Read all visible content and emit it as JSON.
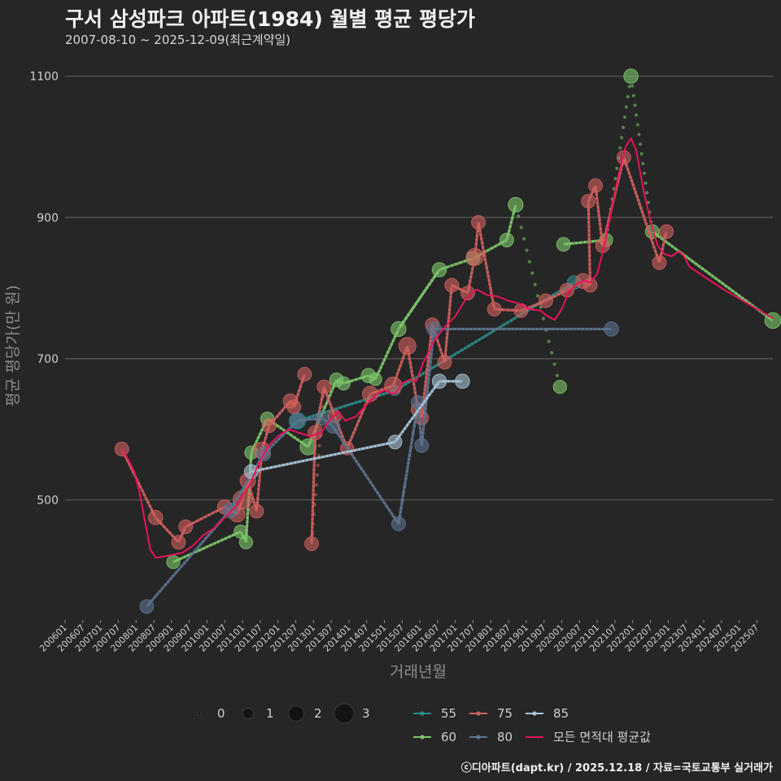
{
  "chart_data": {
    "type": "line",
    "title": "구서 삼성파크 아파트(1984) 월별 평균 평당가",
    "subtitle": "2007-08-10 ~ 2025-12-09(최근계약일)",
    "xlabel": "거래년월",
    "ylabel": "평균 평당가(만 원)",
    "x_ticks": [
      "200601",
      "200607",
      "200701",
      "200707",
      "200801",
      "200807",
      "200901",
      "200907",
      "201001",
      "201007",
      "201101",
      "201107",
      "201201",
      "201207",
      "201301",
      "201307",
      "201401",
      "201407",
      "201501",
      "201507",
      "201601",
      "201607",
      "201701",
      "201707",
      "201801",
      "201807",
      "201901",
      "201907",
      "202001",
      "202007",
      "202101",
      "202107",
      "202201",
      "202207",
      "202301",
      "202307",
      "202401",
      "202407",
      "202501",
      "202507"
    ],
    "x_range": [
      2006.0,
      2025.95
    ],
    "y_ticks": [
      500,
      700,
      900,
      1100
    ],
    "ylim": [
      330,
      1125
    ],
    "size_legend": {
      "title": "",
      "values": [
        "0",
        "1",
        "2",
        "3"
      ]
    },
    "series": [
      {
        "name": "55",
        "color": "#2a8a86",
        "points": [
          [
            2012.55,
            612,
            2.1
          ],
          [
            2015.3,
            655,
            1.0
          ],
          [
            2020.35,
            808,
            1.6
          ]
        ]
      },
      {
        "name": "60",
        "color": "#7ec86a",
        "points": [
          [
            2009.05,
            412,
            1.5
          ],
          [
            2010.95,
            455,
            1.5
          ],
          [
            2011.1,
            440,
            1.5
          ],
          [
            2011.25,
            567,
            1.5
          ],
          [
            2011.7,
            615,
            1.5
          ],
          [
            2012.85,
            575,
            2.0
          ],
          [
            2013.65,
            670,
            1.6
          ],
          [
            2013.85,
            665,
            1.5
          ],
          [
            2014.55,
            676,
            1.7
          ],
          [
            2014.75,
            671,
            1.4
          ],
          [
            2015.4,
            742,
            1.8
          ],
          [
            2016.55,
            826,
            1.7
          ],
          [
            2017.5,
            842,
            1.6
          ],
          [
            2018.45,
            868,
            1.6
          ],
          [
            2018.7,
            918,
            1.8
          ],
          [
            2019.95,
            660,
            1.5
          ],
          [
            2020.05,
            862,
            1.6
          ],
          [
            2021.25,
            868,
            1.5
          ],
          [
            2021.95,
            1100,
            1.7
          ],
          [
            2022.55,
            880,
            1.6
          ],
          [
            2025.95,
            754,
            2.0
          ]
        ]
      },
      {
        "name": "75",
        "color": "#d0605e",
        "points": [
          [
            2007.6,
            572,
            1.6
          ],
          [
            2008.55,
            475,
            1.7
          ],
          [
            2009.2,
            440,
            1.6
          ],
          [
            2009.4,
            462,
            1.6
          ],
          [
            2010.5,
            490,
            1.7
          ],
          [
            2010.85,
            480,
            2.0
          ],
          [
            2011.0,
            500,
            2.5
          ],
          [
            2011.15,
            527,
            1.9
          ],
          [
            2011.4,
            484,
            1.6
          ],
          [
            2011.55,
            570,
            2.1
          ],
          [
            2011.75,
            605,
            1.6
          ],
          [
            2012.35,
            640,
            1.7
          ],
          [
            2012.45,
            632,
            1.6
          ],
          [
            2012.75,
            678,
            1.6
          ],
          [
            2012.95,
            438,
            1.6
          ],
          [
            2013.05,
            595,
            1.7
          ],
          [
            2013.3,
            660,
            1.6
          ],
          [
            2013.6,
            618,
            1.5
          ],
          [
            2013.95,
            573,
            1.5
          ],
          [
            2014.6,
            650,
            1.9
          ],
          [
            2015.25,
            662,
            2.2
          ],
          [
            2015.65,
            718,
            2.2
          ],
          [
            2015.95,
            628,
            1.6
          ],
          [
            2016.05,
            616,
            1.6
          ],
          [
            2016.35,
            748,
            1.6
          ],
          [
            2016.7,
            695,
            1.6
          ],
          [
            2016.9,
            804,
            1.6
          ],
          [
            2017.35,
            793,
            1.6
          ],
          [
            2017.55,
            844,
            2.2
          ],
          [
            2017.65,
            893,
            1.6
          ],
          [
            2018.1,
            770,
            1.6
          ],
          [
            2018.85,
            768,
            1.6
          ],
          [
            2019.55,
            782,
            1.6
          ],
          [
            2020.15,
            797,
            1.6
          ],
          [
            2020.6,
            810,
            1.8
          ],
          [
            2020.8,
            804,
            1.6
          ],
          [
            2020.75,
            923,
            1.6
          ],
          [
            2020.95,
            945,
            1.6
          ],
          [
            2021.15,
            860,
            1.6
          ],
          [
            2021.75,
            985,
            1.6
          ],
          [
            2022.75,
            836,
            1.6
          ],
          [
            2022.95,
            880,
            1.6
          ]
        ]
      },
      {
        "name": "80",
        "color": "#5d7390",
        "points": [
          [
            2008.3,
            349,
            1.6
          ],
          [
            2010.65,
            485,
            1.8
          ],
          [
            2011.6,
            565,
            1.6
          ],
          [
            2012.55,
            612,
            1.6
          ],
          [
            2013.25,
            616,
            1.6
          ],
          [
            2013.55,
            604,
            1.6
          ],
          [
            2015.4,
            466,
            1.6
          ],
          [
            2015.95,
            638,
            1.6
          ],
          [
            2016.05,
            577,
            1.6
          ],
          [
            2016.4,
            742,
            1.7
          ],
          [
            2021.4,
            742,
            1.7
          ]
        ]
      },
      {
        "name": "85",
        "color": "#a8c4d6",
        "points": [
          [
            2011.25,
            540,
            1.6
          ],
          [
            2015.3,
            582,
            1.6
          ],
          [
            2016.55,
            668,
            1.7
          ],
          [
            2017.2,
            668,
            1.7
          ]
        ]
      },
      {
        "name": "모든 면적대 평균값",
        "color": "#e8135a",
        "points": [
          [
            2007.6,
            572
          ],
          [
            2007.75,
            560
          ],
          [
            2007.95,
            540
          ],
          [
            2008.1,
            510
          ],
          [
            2008.25,
            470
          ],
          [
            2008.4,
            430
          ],
          [
            2008.55,
            418
          ],
          [
            2008.8,
            420
          ],
          [
            2009.0,
            422
          ],
          [
            2009.3,
            425
          ],
          [
            2009.6,
            435
          ],
          [
            2009.9,
            450
          ],
          [
            2010.2,
            460
          ],
          [
            2010.5,
            475
          ],
          [
            2010.8,
            490
          ],
          [
            2011.0,
            505
          ],
          [
            2011.2,
            520
          ],
          [
            2011.4,
            545
          ],
          [
            2011.6,
            565
          ],
          [
            2011.8,
            580
          ],
          [
            2012.0,
            590
          ],
          [
            2012.3,
            600
          ],
          [
            2012.6,
            595
          ],
          [
            2012.9,
            590
          ],
          [
            2013.2,
            595
          ],
          [
            2013.5,
            615
          ],
          [
            2013.7,
            625
          ],
          [
            2013.9,
            612
          ],
          [
            2014.2,
            618
          ],
          [
            2014.5,
            635
          ],
          [
            2014.8,
            650
          ],
          [
            2015.0,
            655
          ],
          [
            2015.3,
            650
          ],
          [
            2015.5,
            665
          ],
          [
            2015.7,
            670
          ],
          [
            2015.9,
            668
          ],
          [
            2016.1,
            695
          ],
          [
            2016.4,
            725
          ],
          [
            2016.7,
            745
          ],
          [
            2017.0,
            760
          ],
          [
            2017.3,
            785
          ],
          [
            2017.6,
            798
          ],
          [
            2017.9,
            790
          ],
          [
            2018.2,
            788
          ],
          [
            2018.5,
            782
          ],
          [
            2018.8,
            778
          ],
          [
            2019.1,
            770
          ],
          [
            2019.4,
            768
          ],
          [
            2019.6,
            760
          ],
          [
            2019.8,
            755
          ],
          [
            2020.0,
            770
          ],
          [
            2020.2,
            795
          ],
          [
            2020.4,
            805
          ],
          [
            2020.6,
            810
          ],
          [
            2020.8,
            808
          ],
          [
            2021.0,
            820
          ],
          [
            2021.2,
            860
          ],
          [
            2021.4,
            910
          ],
          [
            2021.6,
            960
          ],
          [
            2021.8,
            1000
          ],
          [
            2021.95,
            1012
          ],
          [
            2022.1,
            995
          ],
          [
            2022.3,
            940
          ],
          [
            2022.5,
            895
          ],
          [
            2022.7,
            860
          ],
          [
            2022.9,
            848
          ],
          [
            2023.1,
            845
          ],
          [
            2023.3,
            852
          ],
          [
            2023.45,
            845
          ],
          [
            2023.6,
            830
          ],
          [
            2024.5,
            800
          ],
          [
            2025.95,
            757
          ]
        ]
      }
    ],
    "dotted_connections": [
      {
        "color": "#7ec86a",
        "from": [
          2015.4,
          742
        ],
        "to": [
          2016.55,
          826
        ]
      },
      {
        "color": "#7ec86a",
        "from": [
          2018.7,
          918
        ],
        "to": [
          2019.95,
          660
        ]
      },
      {
        "color": "#7ec86a",
        "from": [
          2021.25,
          868
        ],
        "to": [
          2021.95,
          1100
        ]
      },
      {
        "color": "#7ec86a",
        "from": [
          2021.95,
          1100
        ],
        "to": [
          2022.55,
          880
        ]
      },
      {
        "color": "#d0605e",
        "from": [
          2012.95,
          438
        ],
        "to": [
          2013.3,
          660
        ]
      },
      {
        "color": "#5d7390",
        "from": [
          2015.4,
          466
        ],
        "to": [
          2015.95,
          638
        ]
      }
    ],
    "legend_entries": [
      "55",
      "60",
      "75",
      "80",
      "85",
      "모든 면적대 평균값"
    ]
  },
  "footer": "ⓒ디아파트(dapt.kr) / 2025.12.18 / 자료=국토교통부 실거래가"
}
